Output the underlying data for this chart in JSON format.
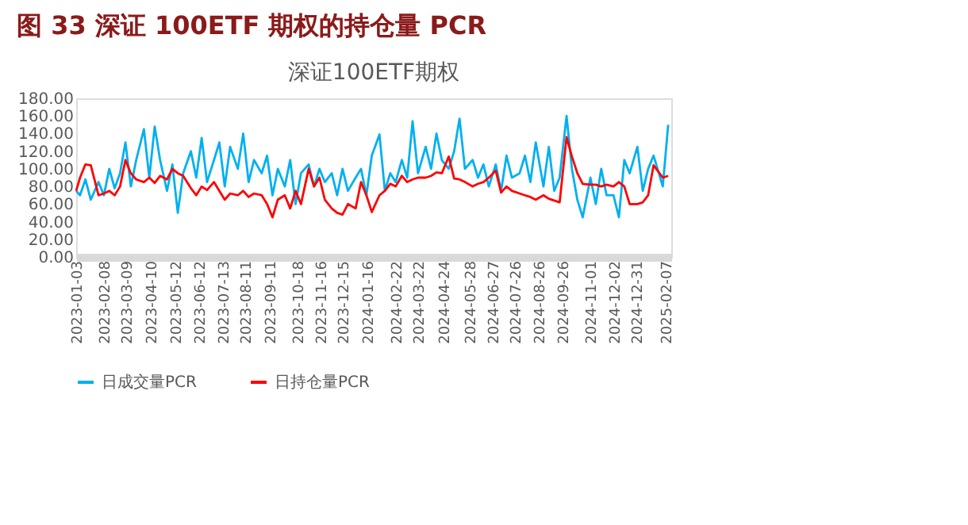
{
  "chart_data": {
    "type": "line",
    "title": "图 33 深证 100ETF 期权的持仓量 PCR",
    "subtitle": "深证100ETF期权",
    "x": [
      "2023-01-03",
      "2023-01-08",
      "2023-01-15",
      "2023-01-22",
      "2023-02-01",
      "2023-02-08",
      "2023-02-15",
      "2023-02-22",
      "2023-03-01",
      "2023-03-08",
      "2023-03-15",
      "2023-03-22",
      "2023-04-01",
      "2023-04-08",
      "2023-04-15",
      "2023-04-22",
      "2023-05-01",
      "2023-05-08",
      "2023-05-15",
      "2023-05-22",
      "2023-06-01",
      "2023-06-08",
      "2023-06-15",
      "2023-06-22",
      "2023-07-01",
      "2023-07-08",
      "2023-07-15",
      "2023-07-22",
      "2023-08-01",
      "2023-08-08",
      "2023-08-15",
      "2023-08-22",
      "2023-09-01",
      "2023-09-08",
      "2023-09-15",
      "2023-09-22",
      "2023-10-01",
      "2023-10-08",
      "2023-10-15",
      "2023-10-22",
      "2023-11-01",
      "2023-11-08",
      "2023-11-15",
      "2023-11-22",
      "2023-12-01",
      "2023-12-08",
      "2023-12-15",
      "2023-12-22",
      "2024-01-01",
      "2024-01-08",
      "2024-01-15",
      "2024-01-22",
      "2024-02-01",
      "2024-02-08",
      "2024-02-15",
      "2024-02-22",
      "2024-03-01",
      "2024-03-08",
      "2024-03-15",
      "2024-03-22",
      "2024-04-01",
      "2024-04-08",
      "2024-04-15",
      "2024-04-22",
      "2024-05-01",
      "2024-05-08",
      "2024-05-15",
      "2024-05-22",
      "2024-06-01",
      "2024-06-08",
      "2024-06-15",
      "2024-06-22",
      "2024-07-01",
      "2024-07-08",
      "2024-07-15",
      "2024-07-22",
      "2024-08-01",
      "2024-08-08",
      "2024-08-15",
      "2024-08-22",
      "2024-09-01",
      "2024-09-08",
      "2024-09-15",
      "2024-09-22",
      "2024-10-01",
      "2024-10-08",
      "2024-10-15",
      "2024-10-22",
      "2024-11-01",
      "2024-11-08",
      "2024-11-15",
      "2024-11-22",
      "2024-12-01",
      "2024-12-08",
      "2024-12-15",
      "2024-12-22",
      "2025-01-01",
      "2025-01-08",
      "2025-01-15",
      "2025-01-22",
      "2025-02-03",
      "2025-02-10"
    ],
    "series": [
      {
        "name": "日成交量PCR",
        "color": "#00b0f0",
        "values": [
          75,
          70,
          88,
          65,
          85,
          70,
          100,
          78,
          95,
          130,
          80,
          110,
          145,
          90,
          148,
          110,
          75,
          105,
          50,
          95,
          120,
          90,
          135,
          85,
          110,
          130,
          80,
          125,
          100,
          140,
          85,
          110,
          95,
          115,
          70,
          100,
          80,
          110,
          60,
          95,
          105,
          80,
          100,
          85,
          95,
          70,
          100,
          75,
          90,
          100,
          70,
          115,
          139,
          75,
          95,
          85,
          110,
          90,
          154,
          95,
          125,
          100,
          140,
          110,
          100,
          120,
          157,
          100,
          110,
          90,
          105,
          80,
          105,
          75,
          115,
          90,
          95,
          115,
          85,
          130,
          80,
          125,
          75,
          90,
          160,
          100,
          65,
          45,
          90,
          60,
          100,
          70,
          70,
          45,
          110,
          95,
          125,
          75,
          100,
          115,
          80,
          150
        ]
      },
      {
        "name": "日持仓量PCR",
        "color": "#ff0000",
        "values": [
          75,
          90,
          105,
          104,
          70,
          72,
          75,
          70,
          80,
          110,
          95,
          88,
          85,
          90,
          84,
          92,
          88,
          100,
          95,
          92,
          78,
          70,
          80,
          76,
          85,
          75,
          65,
          72,
          70,
          75,
          68,
          72,
          70,
          60,
          45,
          65,
          70,
          55,
          75,
          60,
          100,
          80,
          90,
          65,
          55,
          50,
          48,
          60,
          55,
          85,
          70,
          51,
          70,
          75,
          83,
          80,
          92,
          85,
          88,
          90,
          90,
          92,
          96,
          95,
          114,
          89,
          88,
          85,
          80,
          83,
          85,
          90,
          98,
          73,
          80,
          75,
          72,
          70,
          68,
          65,
          70,
          66,
          64,
          62,
          136,
          114,
          95,
          83,
          82,
          82,
          80,
          82,
          80,
          85,
          80,
          60,
          60,
          62,
          70,
          104,
          90,
          92
        ]
      }
    ],
    "xlim": [
      "2023-01-03",
      "2025-02-14"
    ],
    "xticks": [
      {
        "value": "2023-01-03",
        "label": "2023-01-03"
      },
      {
        "value": "2023-02-08",
        "label": "2023-02-08"
      },
      {
        "value": "2023-03-09",
        "label": "2023-03-09"
      },
      {
        "value": "2023-04-10",
        "label": "2023-04-10"
      },
      {
        "value": "2023-05-12",
        "label": "2023-05-12"
      },
      {
        "value": "2023-06-12",
        "label": "2023-06-12"
      },
      {
        "value": "2023-07-13",
        "label": "2023-07-13"
      },
      {
        "value": "2023-08-11",
        "label": "2023-08-11"
      },
      {
        "value": "2023-09-11",
        "label": "2023-09-11"
      },
      {
        "value": "2023-10-18",
        "label": "2023-10-18"
      },
      {
        "value": "2023-11-16",
        "label": "2023-11-16"
      },
      {
        "value": "2023-12-15",
        "label": "2023-12-15"
      },
      {
        "value": "2024-01-16",
        "label": "2024-01-16"
      },
      {
        "value": "2024-02-22",
        "label": "2024-02-22"
      },
      {
        "value": "2024-03-22",
        "label": "2024-03-22"
      },
      {
        "value": "2024-04-24",
        "label": "2024-04-24"
      },
      {
        "value": "2024-05-28",
        "label": "2024-05-28"
      },
      {
        "value": "2024-06-27",
        "label": "2024-06-27"
      },
      {
        "value": "2024-07-26",
        "label": "2024-07-26"
      },
      {
        "value": "2024-08-26",
        "label": "2024-08-26"
      },
      {
        "value": "2024-09-26",
        "label": "2024-09-26"
      },
      {
        "value": "2024-11-01",
        "label": "2024-11-01"
      },
      {
        "value": "2024-12-02",
        "label": "2024-12-02"
      },
      {
        "value": "2024-12-31",
        "label": "2024-12-31"
      },
      {
        "value": "2025-02-07",
        "label": "2025-02-07"
      }
    ],
    "ylim": [
      0,
      180
    ],
    "yticks": [
      {
        "value": 0,
        "label": "0.00"
      },
      {
        "value": 20,
        "label": "20.00"
      },
      {
        "value": 40,
        "label": "40.00"
      },
      {
        "value": 60,
        "label": "60.00"
      },
      {
        "value": 80,
        "label": "80.00"
      },
      {
        "value": 100,
        "label": "100.00"
      },
      {
        "value": 120,
        "label": "120.00"
      },
      {
        "value": 140,
        "label": "140.00"
      },
      {
        "value": 160,
        "label": "160.00"
      },
      {
        "value": 180,
        "label": "180.00"
      }
    ],
    "grid": false,
    "legend": "bottom",
    "marker": "none",
    "line_style": "solid"
  }
}
